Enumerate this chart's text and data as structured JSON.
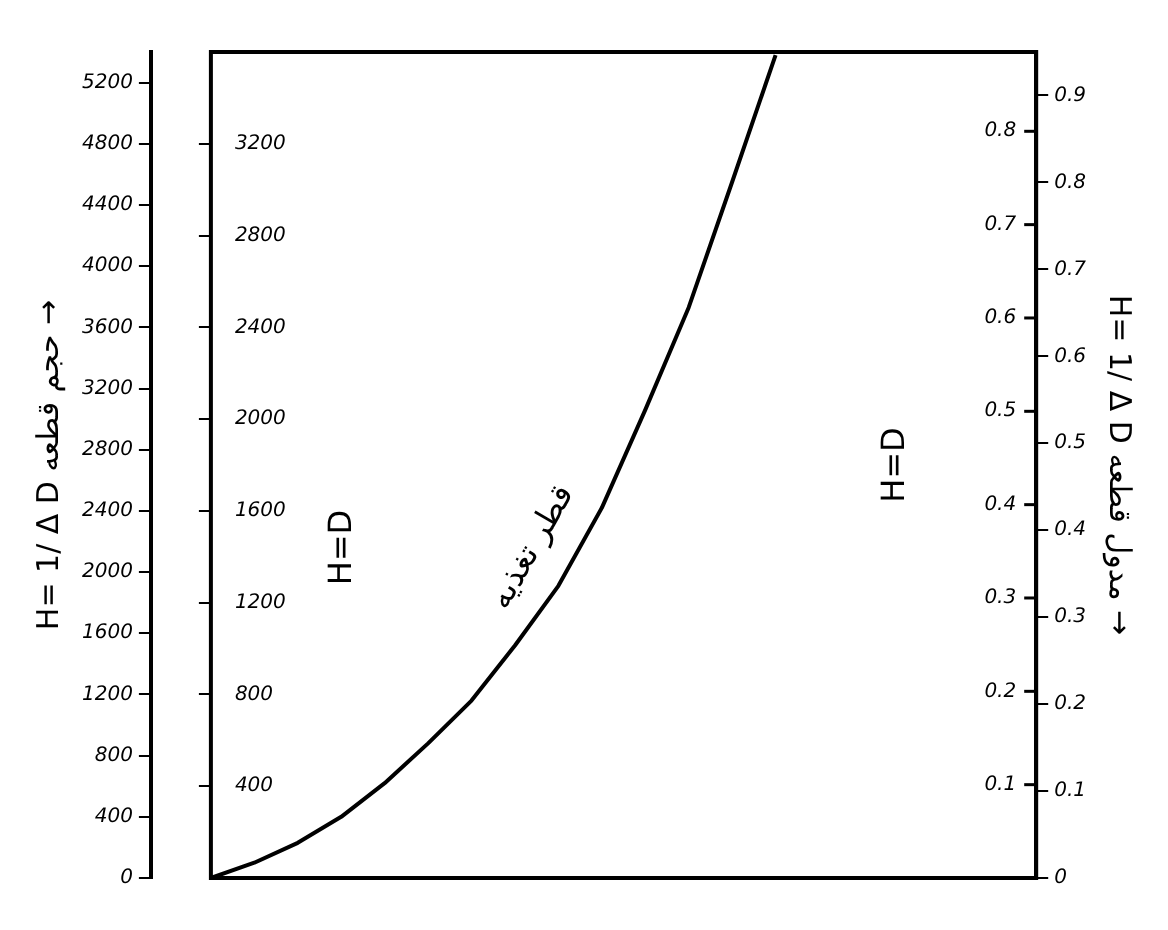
{
  "chart_data": {
    "type": "line",
    "ylabel": "H= 1/ Δ D حجم قطعه →",
    "y3label": "H= 1/ Δ D مدول قطعه →",
    "annotations": [
      "H=D",
      "H=D",
      "قطر تغذیه",
      "0.1",
      "0.2",
      "0.3",
      "0.4",
      "0.5",
      "0.6",
      "0.7",
      "0.8"
    ],
    "categories": [
      null,
      null,
      null,
      null,
      null,
      null,
      null,
      null,
      null,
      null,
      null,
      null,
      null,
      null,
      null,
      null,
      null,
      null,
      null,
      null
    ],
    "series": [
      {
        "color": "#000000",
        "values": [
          0,
          100,
          230,
          400,
          620,
          880,
          1160,
          1520,
          1910,
          2420,
          3060,
          3730,
          4550,
          5380,
          null,
          null,
          null,
          null,
          null,
          null
        ]
      }
    ],
    "ylim": [
      0,
      5400
    ],
    "yticks": [
      0,
      400,
      800,
      1200,
      1600,
      2000,
      2400,
      2800,
      3200,
      3600,
      4000,
      4400,
      4800,
      5200
    ],
    "y2lim": [
      0,
      3600
    ],
    "y2ticks": [
      400,
      800,
      1200,
      1600,
      2000,
      2400,
      2800,
      3200
    ],
    "y3lim": [
      0,
      0.95
    ],
    "y3ticks": [
      0,
      0.1,
      0.2,
      0.3,
      0.4,
      0.5,
      0.6,
      0.7,
      0.8,
      0.9
    ],
    "tick_labels": "y",
    "grid": false,
    "legend": false,
    "marker": "none",
    "line_style": "solid"
  }
}
